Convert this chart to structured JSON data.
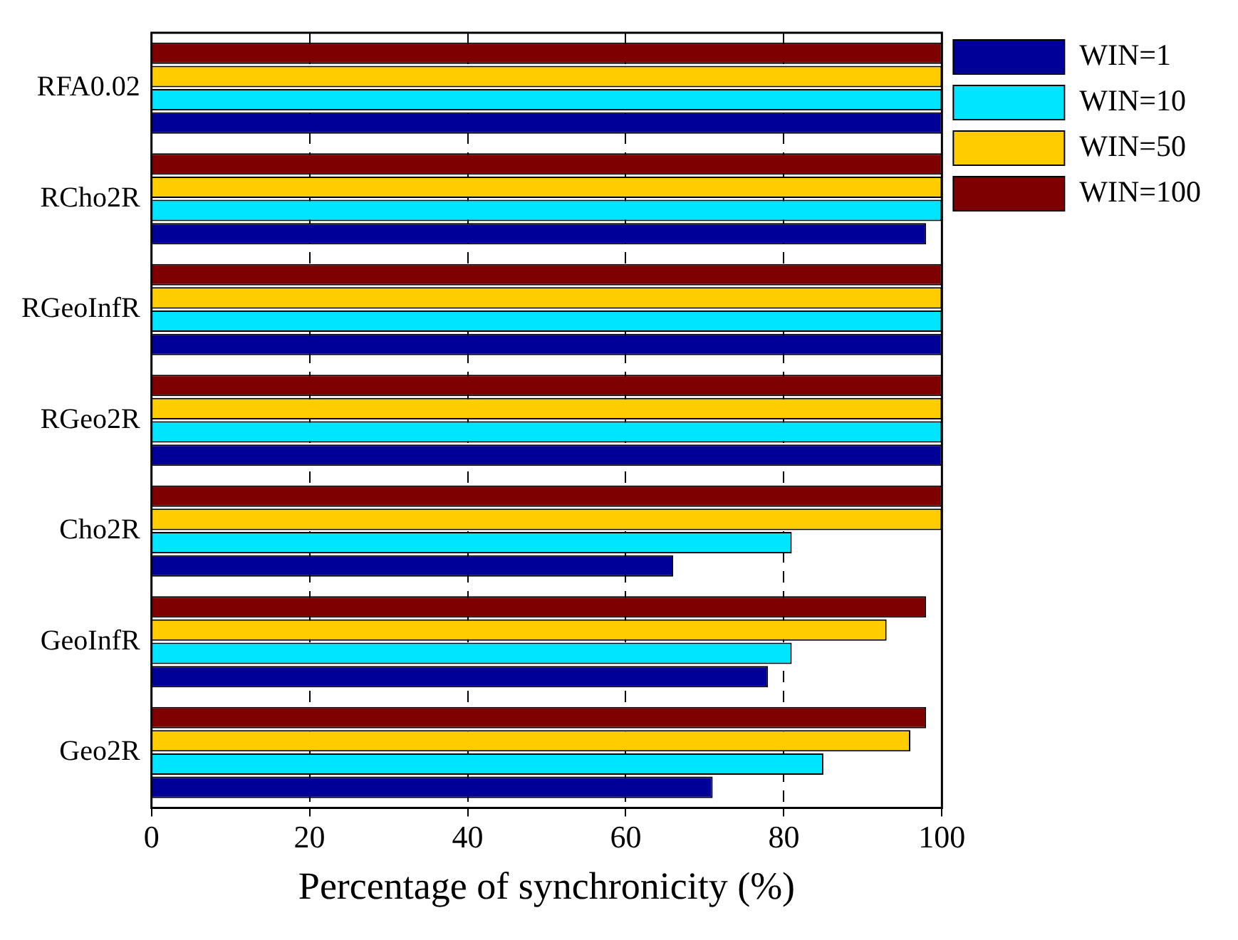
{
  "chart_data": {
    "type": "bar",
    "orientation": "horizontal",
    "xlabel": "Percentage of synchronicity (%)",
    "categories": [
      "RFA0.02",
      "RCho2R",
      "RGeoInfR",
      "RGeo2R",
      "Cho2R",
      "GeoInfR",
      "Geo2R"
    ],
    "series": [
      {
        "name": "WIN=1",
        "color": "#000099",
        "values": [
          100,
          98,
          100,
          100,
          66,
          78,
          71
        ]
      },
      {
        "name": "WIN=10",
        "color": "#00e5ff",
        "values": [
          100,
          100,
          100,
          100,
          81,
          81,
          85
        ]
      },
      {
        "name": "WIN=50",
        "color": "#ffcc00",
        "values": [
          100,
          100,
          100,
          100,
          100,
          93,
          96
        ]
      },
      {
        "name": "WIN=100",
        "color": "#7f0000",
        "values": [
          100,
          100,
          100,
          100,
          100,
          98,
          98
        ]
      }
    ],
    "xlim": [
      0,
      100
    ],
    "xticks": [
      0,
      20,
      40,
      60,
      80,
      100
    ],
    "grid": "x",
    "legend": "top right"
  }
}
